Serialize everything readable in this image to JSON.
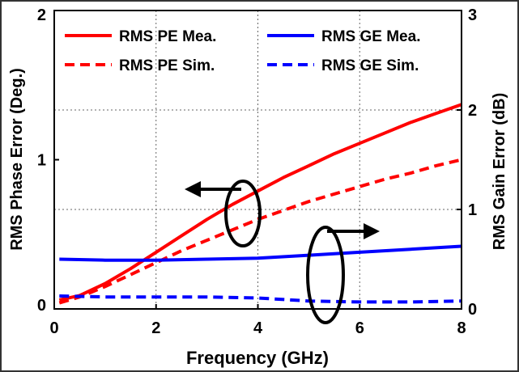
{
  "chart_data": {
    "type": "line",
    "title": "",
    "xlabel": "Frequency (GHz)",
    "ylabel_left": "RMS Phase Error (Deg.)",
    "ylabel_right": "RMS Gain Error (dB)",
    "xlim": [
      0,
      8
    ],
    "ylim_left": [
      0,
      2
    ],
    "ylim_right": [
      0,
      3
    ],
    "x_ticks": [
      "0",
      "2",
      "4",
      "6",
      "8"
    ],
    "y_left_ticks": [
      "0",
      "1",
      "2"
    ],
    "y_right_ticks": [
      "0",
      "1",
      "2",
      "3"
    ],
    "grid": true,
    "legend_position": "top",
    "series": [
      {
        "name": "RMS PE Mea.",
        "axis": "left",
        "style": "solid",
        "color": "#ff0000",
        "x": [
          0.1,
          0.5,
          1,
          1.5,
          2,
          2.5,
          3,
          3.5,
          4,
          4.5,
          5,
          5.5,
          6,
          6.5,
          7,
          7.5,
          8
        ],
        "y": [
          0.06,
          0.09,
          0.17,
          0.27,
          0.38,
          0.49,
          0.6,
          0.7,
          0.79,
          0.88,
          0.96,
          1.04,
          1.11,
          1.18,
          1.25,
          1.31,
          1.37
        ]
      },
      {
        "name": "RMS PE Sim.",
        "axis": "left",
        "style": "dashed",
        "color": "#ff0000",
        "x": [
          0.1,
          0.5,
          1,
          1.5,
          2,
          2.5,
          3,
          3.5,
          4,
          4.5,
          5,
          5.5,
          6,
          6.5,
          7,
          7.5,
          8
        ],
        "y": [
          0.04,
          0.08,
          0.15,
          0.23,
          0.31,
          0.39,
          0.46,
          0.53,
          0.6,
          0.66,
          0.72,
          0.77,
          0.82,
          0.87,
          0.91,
          0.96,
          1.0
        ]
      },
      {
        "name": "RMS GE Mea.",
        "axis": "right",
        "style": "solid",
        "color": "#0000ff",
        "x": [
          0.1,
          1,
          2,
          3,
          4,
          5,
          6,
          7,
          8
        ],
        "y": [
          0.5,
          0.49,
          0.49,
          0.5,
          0.51,
          0.54,
          0.57,
          0.6,
          0.63
        ]
      },
      {
        "name": "RMS GE Sim.",
        "axis": "right",
        "style": "dashed",
        "color": "#0000ff",
        "x": [
          0.1,
          1,
          2,
          3,
          4,
          5,
          6,
          7,
          8
        ],
        "y": [
          0.13,
          0.12,
          0.12,
          0.12,
          0.11,
          0.08,
          0.07,
          0.07,
          0.08
        ]
      }
    ]
  }
}
